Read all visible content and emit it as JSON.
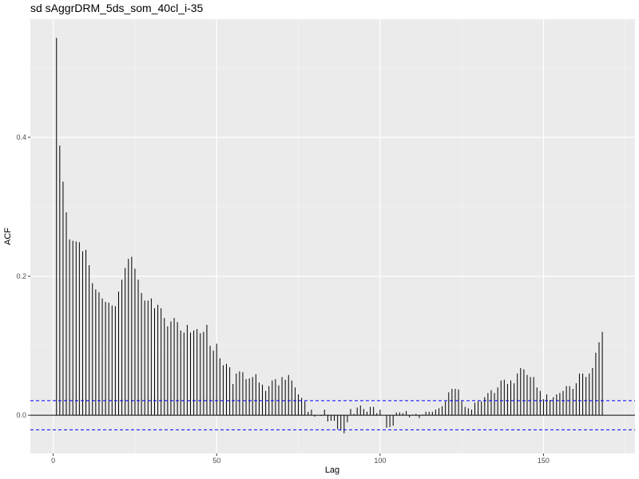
{
  "chart_data": {
    "type": "bar",
    "title": "sd sAggrDRM_5ds_som_40cl_i-35",
    "xlabel": "Lag",
    "ylabel": "ACF",
    "xlim": [
      -7,
      178
    ],
    "ylim": [
      -0.055,
      0.57
    ],
    "x_ticks": [
      0,
      50,
      100,
      150
    ],
    "x_tick_labels": [
      "0",
      "50",
      "100",
      "150"
    ],
    "y_ticks": [
      0.0,
      0.2,
      0.4
    ],
    "y_tick_labels": [
      "0.0",
      "0.2",
      "0.4"
    ],
    "grid": true,
    "confidence_band": 0.021,
    "lags": [
      1,
      2,
      3,
      4,
      5,
      6,
      7,
      8,
      9,
      10,
      11,
      12,
      13,
      14,
      15,
      16,
      17,
      18,
      19,
      20,
      21,
      22,
      23,
      24,
      25,
      26,
      27,
      28,
      29,
      30,
      31,
      32,
      33,
      34,
      35,
      36,
      37,
      38,
      39,
      40,
      41,
      42,
      43,
      44,
      45,
      46,
      47,
      48,
      49,
      50,
      51,
      52,
      53,
      54,
      55,
      56,
      57,
      58,
      59,
      60,
      61,
      62,
      63,
      64,
      65,
      66,
      67,
      68,
      69,
      70,
      71,
      72,
      73,
      74,
      75,
      76,
      77,
      78,
      79,
      80,
      81,
      82,
      83,
      84,
      85,
      86,
      87,
      88,
      89,
      90,
      91,
      92,
      93,
      94,
      95,
      96,
      97,
      98,
      99,
      100,
      101,
      102,
      103,
      104,
      105,
      106,
      107,
      108,
      109,
      110,
      111,
      112,
      113,
      114,
      115,
      116,
      117,
      118,
      119,
      120,
      121,
      122,
      123,
      124,
      125,
      126,
      127,
      128,
      129,
      130,
      131,
      132,
      133,
      134,
      135,
      136,
      137,
      138,
      139,
      140,
      141,
      142,
      143,
      144,
      145,
      146,
      147,
      148,
      149,
      150,
      151,
      152,
      153,
      154,
      155,
      156,
      157,
      158,
      159,
      160,
      161,
      162,
      163,
      164,
      165,
      166,
      167,
      168
    ],
    "values": [
      0.543,
      0.388,
      0.336,
      0.292,
      0.253,
      0.251,
      0.25,
      0.249,
      0.236,
      0.238,
      0.216,
      0.19,
      0.181,
      0.177,
      0.168,
      0.163,
      0.162,
      0.158,
      0.157,
      0.178,
      0.195,
      0.212,
      0.225,
      0.228,
      0.211,
      0.195,
      0.176,
      0.165,
      0.165,
      0.168,
      0.154,
      0.159,
      0.154,
      0.14,
      0.128,
      0.135,
      0.14,
      0.134,
      0.122,
      0.119,
      0.13,
      0.119,
      0.122,
      0.124,
      0.118,
      0.12,
      0.13,
      0.1,
      0.093,
      0.103,
      0.082,
      0.072,
      0.074,
      0.069,
      0.045,
      0.06,
      0.063,
      0.062,
      0.052,
      0.053,
      0.055,
      0.059,
      0.047,
      0.044,
      0.035,
      0.042,
      0.05,
      0.052,
      0.043,
      0.055,
      0.051,
      0.058,
      0.05,
      0.04,
      0.03,
      0.025,
      0.02,
      0.005,
      0.008,
      -0.002,
      0.0,
      -0.001,
      0.008,
      -0.009,
      -0.008,
      -0.008,
      -0.02,
      -0.022,
      -0.026,
      -0.01,
      0.009,
      0.002,
      0.011,
      0.014,
      0.009,
      0.005,
      0.012,
      0.012,
      0.003,
      0.008,
      0.0,
      -0.018,
      -0.017,
      -0.015,
      0.004,
      0.004,
      0.003,
      0.006,
      -0.003,
      0.001,
      0.002,
      -0.004,
      0.001,
      0.005,
      0.005,
      0.005,
      0.008,
      0.01,
      0.013,
      0.02,
      0.033,
      0.038,
      0.038,
      0.037,
      0.02,
      0.012,
      0.01,
      0.008,
      0.018,
      0.02,
      0.02,
      0.026,
      0.032,
      0.036,
      0.032,
      0.04,
      0.05,
      0.051,
      0.045,
      0.05,
      0.046,
      0.06,
      0.068,
      0.066,
      0.058,
      0.055,
      0.055,
      0.04,
      0.035,
      0.023,
      0.03,
      0.022,
      0.026,
      0.03,
      0.032,
      0.035,
      0.042,
      0.042,
      0.038,
      0.046,
      0.06,
      0.06,
      0.055,
      0.06,
      0.068,
      0.09,
      0.105,
      0.12,
      0.141
    ]
  }
}
